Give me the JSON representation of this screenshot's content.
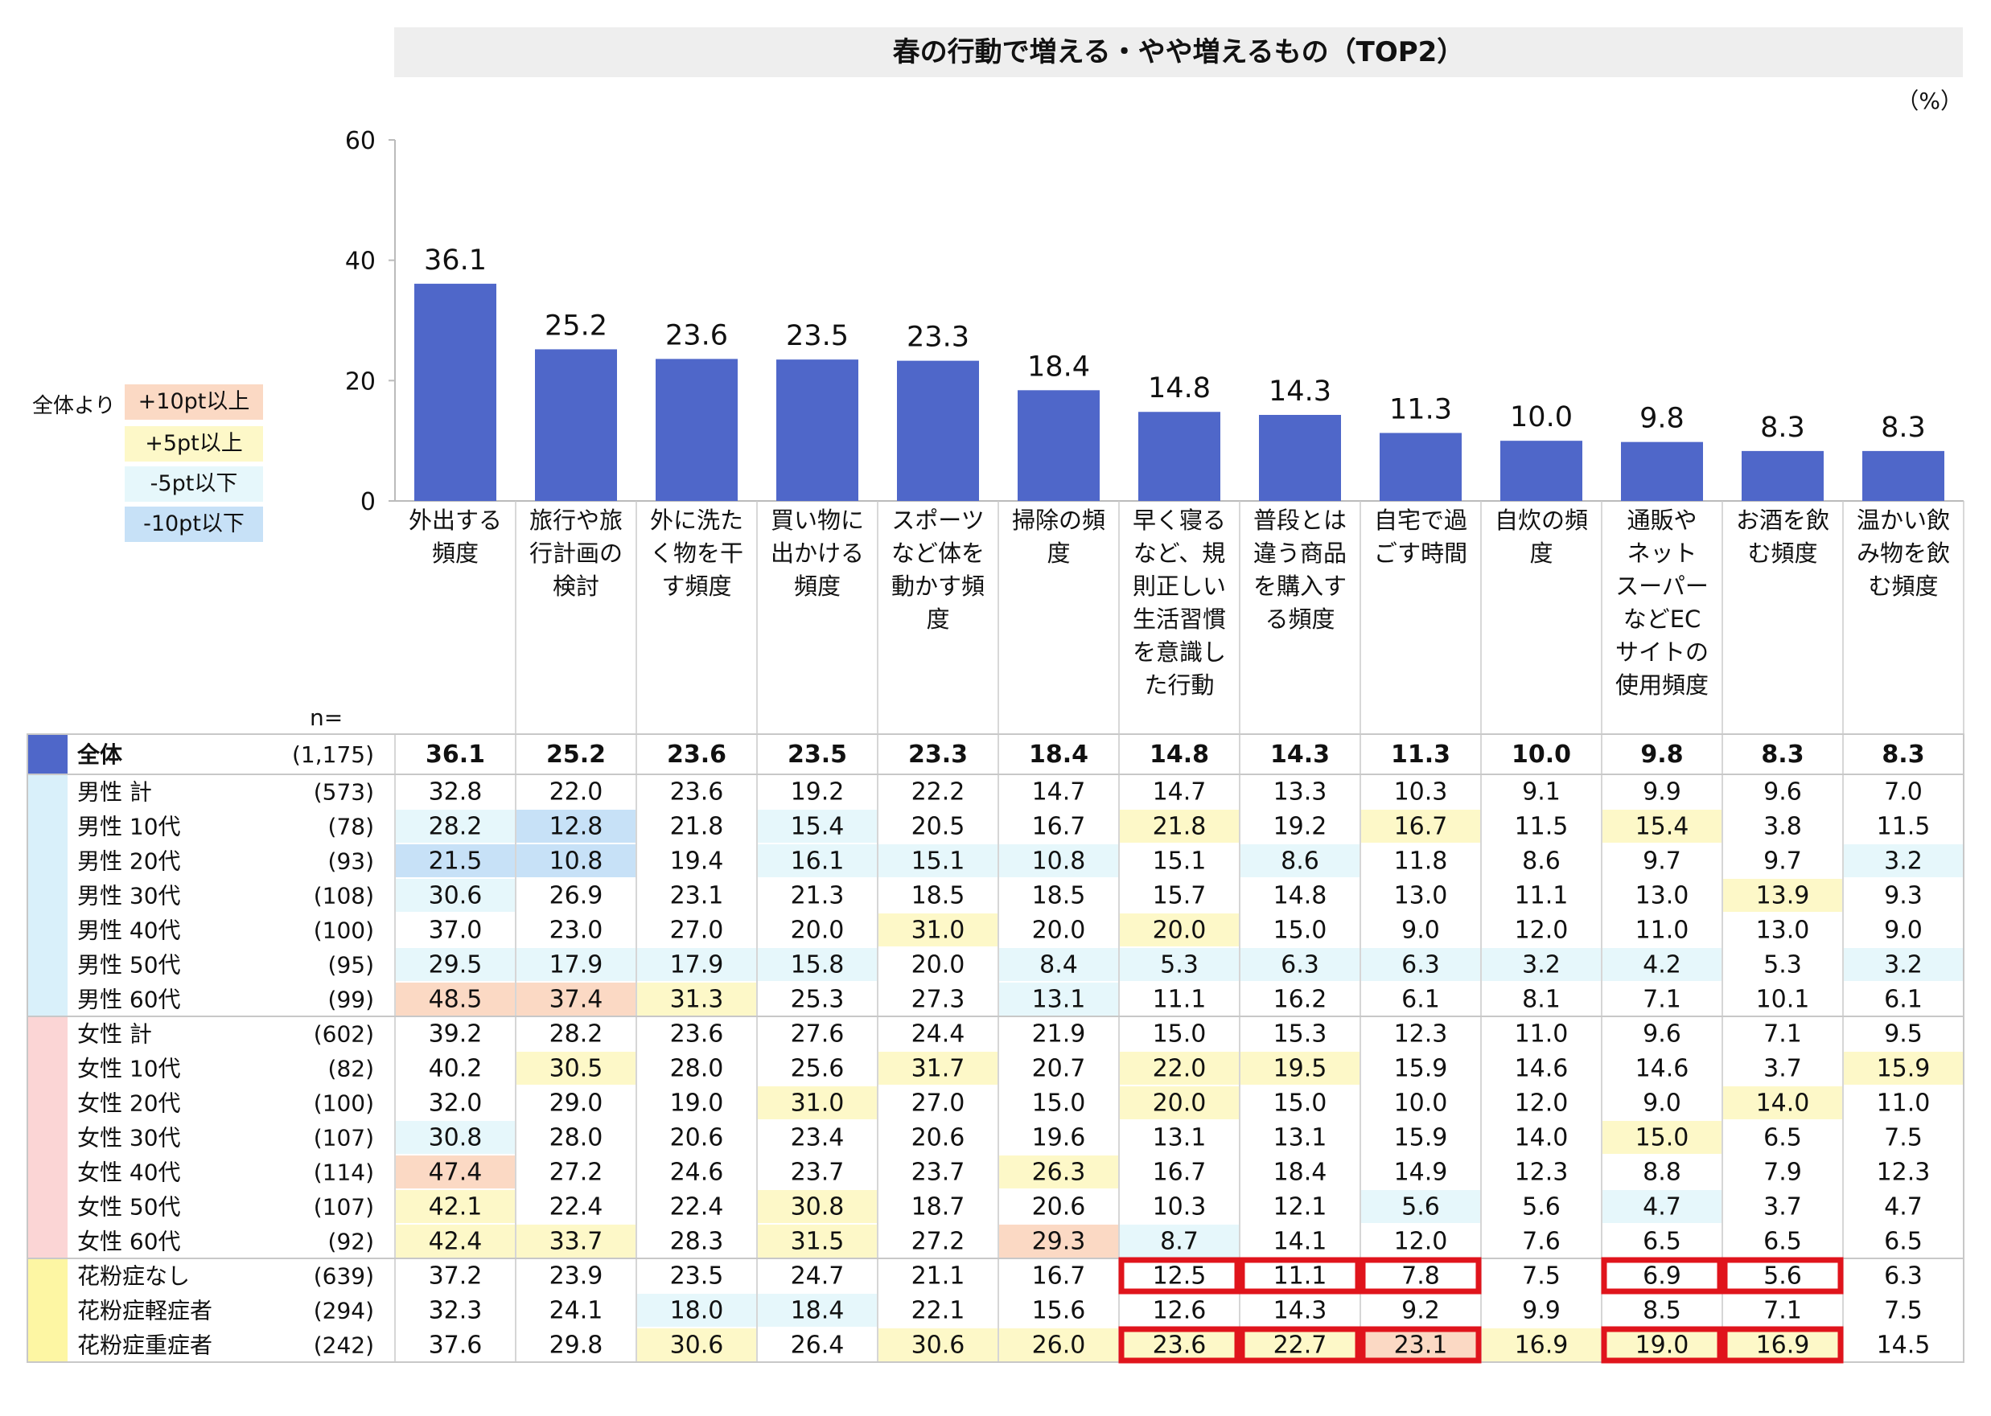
{
  "title": "春の行動で増える・やや増えるもの（TOP2）",
  "unit": "（%）",
  "legend": {
    "caption": "全体より",
    "items": [
      {
        "label": "+10pt以上",
        "color": "#fbd9c4"
      },
      {
        "label": "+5pt以上",
        "color": "#fdf8c8"
      },
      {
        "label": "-5pt以下",
        "color": "#e6f7fb"
      },
      {
        "label": "-10pt以下",
        "color": "#c7e1f7"
      }
    ]
  },
  "n_label": "n=",
  "group_colors": {
    "total": "#4f67c9",
    "male": "#d9f0fa",
    "female": "#fbd5d5",
    "pollen": "#fdf6a3"
  },
  "chart_data": {
    "type": "bar",
    "title": "春の行動で増える・やや増えるもの（TOP2）",
    "ylim": [
      0,
      60
    ],
    "yticks": [
      0,
      20,
      40,
      60
    ],
    "bar_color": "#4f67c9",
    "categories": [
      [
        "外出する",
        "頻度"
      ],
      [
        "旅行や旅",
        "行計画の",
        "検討"
      ],
      [
        "外に洗た",
        "く物を干",
        "す頻度"
      ],
      [
        "買い物に",
        "出かける",
        "頻度"
      ],
      [
        "スポーツ",
        "など体を",
        "動かす頻",
        "度"
      ],
      [
        "掃除の頻",
        "度"
      ],
      [
        "早く寝る",
        "など、規",
        "則正しい",
        "生活習慣",
        "を意識し",
        "た行動"
      ],
      [
        "普段とは",
        "違う商品",
        "を購入す",
        "る頻度"
      ],
      [
        "自宅で過",
        "ごす時間"
      ],
      [
        "自炊の頻",
        "度"
      ],
      [
        "通販や",
        "ネット",
        "スーパー",
        "などEC",
        "サイトの",
        "使用頻度"
      ],
      [
        "お酒を飲",
        "む頻度"
      ],
      [
        "温かい飲",
        "み物を飲",
        "む頻度"
      ]
    ],
    "values": [
      36.1,
      25.2,
      23.6,
      23.5,
      23.3,
      18.4,
      14.8,
      14.3,
      11.3,
      10.0,
      9.8,
      8.3,
      8.3
    ],
    "value_labels": [
      "36.1",
      "25.2",
      "23.6",
      "23.5",
      "23.3",
      "18.4",
      "14.8",
      "14.3",
      "11.3",
      "10.0",
      "9.8",
      "8.3",
      "8.3"
    ]
  },
  "table": {
    "rows": [
      {
        "group": "total",
        "label": "全体",
        "n": "(1,175)",
        "values": [
          "36.1",
          "25.2",
          "23.6",
          "23.5",
          "23.3",
          "18.4",
          "14.8",
          "14.3",
          "11.3",
          "10.0",
          "9.8",
          "8.3",
          "8.3"
        ],
        "hl": [
          0,
          0,
          0,
          0,
          0,
          0,
          0,
          0,
          0,
          0,
          0,
          0,
          0
        ]
      },
      {
        "group": "male",
        "label": "男性 計",
        "n": "(573)",
        "values": [
          "32.8",
          "22.0",
          "23.6",
          "19.2",
          "22.2",
          "14.7",
          "14.7",
          "13.3",
          "10.3",
          "9.1",
          "9.9",
          "9.6",
          "7.0"
        ],
        "hl": [
          0,
          0,
          0,
          0,
          0,
          0,
          0,
          0,
          0,
          0,
          0,
          0,
          0
        ]
      },
      {
        "group": "male",
        "label": "男性 10代",
        "n": "(78)",
        "values": [
          "28.2",
          "12.8",
          "21.8",
          "15.4",
          "20.5",
          "16.7",
          "21.8",
          "19.2",
          "16.7",
          "11.5",
          "15.4",
          "3.8",
          "11.5"
        ],
        "hl": [
          3,
          4,
          0,
          3,
          0,
          0,
          2,
          0,
          2,
          0,
          2,
          0,
          0
        ]
      },
      {
        "group": "male",
        "label": "男性 20代",
        "n": "(93)",
        "values": [
          "21.5",
          "10.8",
          "19.4",
          "16.1",
          "15.1",
          "10.8",
          "15.1",
          "8.6",
          "11.8",
          "8.6",
          "9.7",
          "9.7",
          "3.2"
        ],
        "hl": [
          4,
          4,
          0,
          3,
          3,
          3,
          0,
          3,
          0,
          0,
          0,
          0,
          3
        ]
      },
      {
        "group": "male",
        "label": "男性 30代",
        "n": "(108)",
        "values": [
          "30.6",
          "26.9",
          "23.1",
          "21.3",
          "18.5",
          "18.5",
          "15.7",
          "14.8",
          "13.0",
          "11.1",
          "13.0",
          "13.9",
          "9.3"
        ],
        "hl": [
          3,
          0,
          0,
          0,
          0,
          0,
          0,
          0,
          0,
          0,
          0,
          2,
          0
        ]
      },
      {
        "group": "male",
        "label": "男性 40代",
        "n": "(100)",
        "values": [
          "37.0",
          "23.0",
          "27.0",
          "20.0",
          "31.0",
          "20.0",
          "20.0",
          "15.0",
          "9.0",
          "12.0",
          "11.0",
          "13.0",
          "9.0"
        ],
        "hl": [
          0,
          0,
          0,
          0,
          2,
          0,
          2,
          0,
          0,
          0,
          0,
          0,
          0
        ]
      },
      {
        "group": "male",
        "label": "男性 50代",
        "n": "(95)",
        "values": [
          "29.5",
          "17.9",
          "17.9",
          "15.8",
          "20.0",
          "8.4",
          "5.3",
          "6.3",
          "6.3",
          "3.2",
          "4.2",
          "5.3",
          "3.2"
        ],
        "hl": [
          3,
          3,
          3,
          3,
          0,
          3,
          3,
          3,
          3,
          3,
          3,
          0,
          3
        ]
      },
      {
        "group": "male",
        "label": "男性 60代",
        "n": "(99)",
        "values": [
          "48.5",
          "37.4",
          "31.3",
          "25.3",
          "27.3",
          "13.1",
          "11.1",
          "16.2",
          "6.1",
          "8.1",
          "7.1",
          "10.1",
          "6.1"
        ],
        "hl": [
          1,
          1,
          2,
          0,
          0,
          3,
          0,
          0,
          0,
          0,
          0,
          0,
          0
        ]
      },
      {
        "group": "female",
        "label": "女性 計",
        "n": "(602)",
        "values": [
          "39.2",
          "28.2",
          "23.6",
          "27.6",
          "24.4",
          "21.9",
          "15.0",
          "15.3",
          "12.3",
          "11.0",
          "9.6",
          "7.1",
          "9.5"
        ],
        "hl": [
          0,
          0,
          0,
          0,
          0,
          0,
          0,
          0,
          0,
          0,
          0,
          0,
          0
        ]
      },
      {
        "group": "female",
        "label": "女性 10代",
        "n": "(82)",
        "values": [
          "40.2",
          "30.5",
          "28.0",
          "25.6",
          "31.7",
          "20.7",
          "22.0",
          "19.5",
          "15.9",
          "14.6",
          "14.6",
          "3.7",
          "15.9"
        ],
        "hl": [
          0,
          2,
          0,
          0,
          2,
          0,
          2,
          2,
          0,
          0,
          0,
          0,
          2
        ]
      },
      {
        "group": "female",
        "label": "女性 20代",
        "n": "(100)",
        "values": [
          "32.0",
          "29.0",
          "19.0",
          "31.0",
          "27.0",
          "15.0",
          "20.0",
          "15.0",
          "10.0",
          "12.0",
          "9.0",
          "14.0",
          "11.0"
        ],
        "hl": [
          0,
          0,
          0,
          2,
          0,
          0,
          2,
          0,
          0,
          0,
          0,
          2,
          0
        ]
      },
      {
        "group": "female",
        "label": "女性 30代",
        "n": "(107)",
        "values": [
          "30.8",
          "28.0",
          "20.6",
          "23.4",
          "20.6",
          "19.6",
          "13.1",
          "13.1",
          "15.9",
          "14.0",
          "15.0",
          "6.5",
          "7.5"
        ],
        "hl": [
          3,
          0,
          0,
          0,
          0,
          0,
          0,
          0,
          0,
          0,
          2,
          0,
          0
        ]
      },
      {
        "group": "female",
        "label": "女性 40代",
        "n": "(114)",
        "values": [
          "47.4",
          "27.2",
          "24.6",
          "23.7",
          "23.7",
          "26.3",
          "16.7",
          "18.4",
          "14.9",
          "12.3",
          "8.8",
          "7.9",
          "12.3"
        ],
        "hl": [
          1,
          0,
          0,
          0,
          0,
          2,
          0,
          0,
          0,
          0,
          0,
          0,
          0
        ]
      },
      {
        "group": "female",
        "label": "女性 50代",
        "n": "(107)",
        "values": [
          "42.1",
          "22.4",
          "22.4",
          "30.8",
          "18.7",
          "20.6",
          "10.3",
          "12.1",
          "5.6",
          "5.6",
          "4.7",
          "3.7",
          "4.7"
        ],
        "hl": [
          2,
          0,
          0,
          2,
          0,
          0,
          0,
          0,
          3,
          0,
          3,
          0,
          0
        ]
      },
      {
        "group": "female",
        "label": "女性 60代",
        "n": "(92)",
        "values": [
          "42.4",
          "33.7",
          "28.3",
          "31.5",
          "27.2",
          "29.3",
          "8.7",
          "14.1",
          "12.0",
          "7.6",
          "6.5",
          "6.5",
          "6.5"
        ],
        "hl": [
          2,
          2,
          0,
          2,
          0,
          1,
          3,
          0,
          0,
          0,
          0,
          0,
          0
        ]
      },
      {
        "group": "pollen",
        "label": "花粉症なし",
        "n": "(639)",
        "values": [
          "37.2",
          "23.9",
          "23.5",
          "24.7",
          "21.1",
          "16.7",
          "12.5",
          "11.1",
          "7.8",
          "7.5",
          "6.9",
          "5.6",
          "6.3"
        ],
        "hl": [
          0,
          0,
          0,
          0,
          0,
          0,
          0,
          0,
          0,
          0,
          0,
          0,
          0
        ]
      },
      {
        "group": "pollen",
        "label": "花粉症軽症者",
        "n": "(294)",
        "values": [
          "32.3",
          "24.1",
          "18.0",
          "18.4",
          "22.1",
          "15.6",
          "12.6",
          "14.3",
          "9.2",
          "9.9",
          "8.5",
          "7.1",
          "7.5"
        ],
        "hl": [
          0,
          0,
          3,
          3,
          0,
          0,
          0,
          0,
          0,
          0,
          0,
          0,
          0
        ]
      },
      {
        "group": "pollen",
        "label": "花粉症重症者",
        "n": "(242)",
        "values": [
          "37.6",
          "29.8",
          "30.6",
          "26.4",
          "30.6",
          "26.0",
          "23.6",
          "22.7",
          "23.1",
          "16.9",
          "19.0",
          "16.9",
          "14.5"
        ],
        "hl": [
          0,
          0,
          2,
          0,
          2,
          2,
          2,
          2,
          1,
          2,
          2,
          2,
          0
        ]
      }
    ],
    "red_boxes": [
      {
        "row": 15,
        "col": 6
      },
      {
        "row": 15,
        "col": 7
      },
      {
        "row": 15,
        "col": 8
      },
      {
        "row": 15,
        "col": 10
      },
      {
        "row": 15,
        "col": 11
      },
      {
        "row": 17,
        "col": 6
      },
      {
        "row": 17,
        "col": 7
      },
      {
        "row": 17,
        "col": 8
      },
      {
        "row": 17,
        "col": 10
      },
      {
        "row": 17,
        "col": 11
      }
    ],
    "red_box_color": "#e0141c"
  }
}
